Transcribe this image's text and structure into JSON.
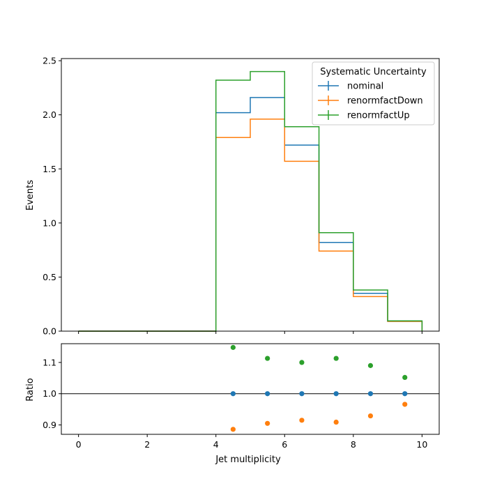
{
  "chart_data": [
    {
      "type": "line",
      "step": "post",
      "ylabel": "Events",
      "xlim": [
        -0.5,
        10.5
      ],
      "ylim": [
        0,
        2.52
      ],
      "x_edges": [
        0,
        1,
        2,
        3,
        4,
        5,
        6,
        7,
        8,
        9,
        10
      ],
      "y_ticks": [
        "0.0",
        "0.5",
        "1.0",
        "1.5",
        "2.0",
        "2.5"
      ],
      "legend_title": "Systematic Uncertainty",
      "legend_position": "top-right",
      "series": [
        {
          "name": "nominal",
          "color": "#1f77b4",
          "values": [
            0,
            0,
            0,
            0,
            2.02,
            2.16,
            1.72,
            0.82,
            0.35,
            0.09
          ]
        },
        {
          "name": "renormfactDown",
          "color": "#ff7f0e",
          "values": [
            0,
            0,
            0,
            0,
            1.79,
            1.96,
            1.57,
            0.74,
            0.32,
            0.09
          ]
        },
        {
          "name": "renormfactUp",
          "color": "#2ca02c",
          "values": [
            0,
            0,
            0,
            0,
            2.32,
            2.4,
            1.89,
            0.91,
            0.38,
            0.095
          ]
        }
      ]
    },
    {
      "type": "scatter",
      "ylabel": "Ratio",
      "xlabel": "Jet multiplicity",
      "xlim": [
        -0.5,
        10.5
      ],
      "ylim": [
        0.87,
        1.16
      ],
      "x_ticks": [
        "0",
        "2",
        "4",
        "6",
        "8",
        "10"
      ],
      "y_ticks": [
        "0.9",
        "1.0",
        "1.1"
      ],
      "reference_line": 1.0,
      "x": [
        4.5,
        5.5,
        6.5,
        7.5,
        8.5,
        9.5
      ],
      "series": [
        {
          "name": "nominal",
          "color": "#1f77b4",
          "values": [
            1.0,
            1.0,
            1.0,
            1.0,
            1.0,
            1.0
          ]
        },
        {
          "name": "renormfactDown",
          "color": "#ff7f0e",
          "values": [
            0.886,
            0.905,
            0.915,
            0.909,
            0.929,
            0.966
          ]
        },
        {
          "name": "renormfactUp",
          "color": "#2ca02c",
          "values": [
            1.148,
            1.113,
            1.1,
            1.113,
            1.09,
            1.052
          ]
        }
      ]
    }
  ]
}
